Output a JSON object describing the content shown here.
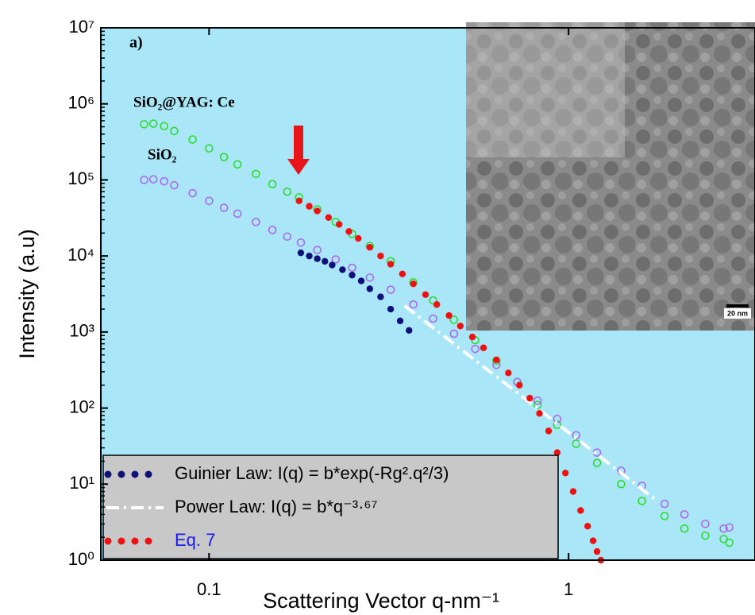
{
  "chart_data": {
    "type": "scatter",
    "x_label": "Scattering Vector q-nm⁻¹",
    "y_label": "Intensity (a.u)",
    "log_x": true,
    "log_y": true,
    "xlim": [
      0.05,
      3.3
    ],
    "ylim": [
      1,
      10000000
    ],
    "xticks": [
      0.1,
      1
    ],
    "yticks": [
      {
        "value": 1,
        "label": "10⁰"
      },
      {
        "value": 10,
        "label": "10¹"
      },
      {
        "value": 100,
        "label": "10²"
      },
      {
        "value": 1000,
        "label": "10³"
      },
      {
        "value": 10000,
        "label": "10⁴"
      },
      {
        "value": 100000,
        "label": "10⁵"
      },
      {
        "value": 1000000,
        "label": "10⁶"
      },
      {
        "value": 10000000,
        "label": "10⁷"
      }
    ],
    "annotations": [
      "a)",
      "SiO₂@YAG: Ce",
      "SiO₂",
      "20 nm"
    ],
    "series": [
      {
        "color": "#22dd22",
        "marker": "open",
        "x": [
          0.066,
          0.07,
          0.075,
          0.08,
          0.09,
          0.1,
          0.11,
          0.12,
          0.135,
          0.15,
          0.165,
          0.178,
          0.2,
          0.225,
          0.25,
          0.28,
          0.32,
          0.37,
          0.42,
          0.48,
          0.55,
          0.63,
          0.72,
          0.82,
          0.93,
          1.05,
          1.2,
          1.4,
          1.6,
          1.85,
          2.1,
          2.4,
          2.7,
          2.8
        ],
        "values": [
          540000,
          550000,
          510000,
          440000,
          340000,
          260000,
          200000,
          160000,
          120000,
          88000,
          70000,
          59000,
          41000,
          28000,
          19500,
          13500,
          8500,
          4500,
          2600,
          1450,
          780,
          420,
          220,
          110,
          60,
          34,
          19,
          10,
          6,
          3.8,
          2.6,
          2.1,
          1.9,
          1.7
        ]
      },
      {
        "color": "#b060f0",
        "marker": "open",
        "x": [
          0.066,
          0.07,
          0.075,
          0.08,
          0.09,
          0.1,
          0.11,
          0.12,
          0.135,
          0.15,
          0.165,
          0.18,
          0.2,
          0.225,
          0.25,
          0.28,
          0.32,
          0.37,
          0.42,
          0.48,
          0.55,
          0.63,
          0.72,
          0.82,
          0.93,
          1.05,
          1.2,
          1.4,
          1.6,
          1.85,
          2.1,
          2.4,
          2.7,
          2.8
        ],
        "values": [
          100000,
          102000,
          96000,
          85000,
          67000,
          53000,
          43000,
          36000,
          28000,
          22000,
          18000,
          15000,
          12000,
          9000,
          7000,
          5200,
          3600,
          2300,
          1500,
          950,
          600,
          370,
          220,
          125,
          72,
          44,
          26,
          15,
          9.5,
          5.5,
          4,
          3,
          2.6,
          2.7
        ]
      },
      {
        "name": "Guinier Law: I(q) = b*exp(-Rg².q²/3)",
        "color": "#10107a",
        "marker": "dot",
        "x": [
          0.18,
          0.19,
          0.2,
          0.21,
          0.22,
          0.235,
          0.25,
          0.265,
          0.28,
          0.3,
          0.32,
          0.34,
          0.36
        ],
        "values": [
          11000,
          10000,
          9200,
          8500,
          7600,
          6600,
          5600,
          4700,
          3700,
          2900,
          2000,
          1400,
          1050
        ]
      },
      {
        "name": "Power Law: I(q) = b*q⁻³·⁶⁷",
        "color": "#ffffff",
        "marker": "dashdot",
        "x": [
          0.35,
          1.75
        ],
        "values": [
          2214,
          6.2
        ]
      },
      {
        "name": "Eq. 7",
        "color": "#ee1111",
        "marker": "dot",
        "legend_text_color": "#1a1aee",
        "x": [
          0.178,
          0.19,
          0.2,
          0.215,
          0.23,
          0.245,
          0.26,
          0.28,
          0.3,
          0.32,
          0.345,
          0.37,
          0.4,
          0.43,
          0.465,
          0.5,
          0.54,
          0.58,
          0.63,
          0.68,
          0.73,
          0.78,
          0.83,
          0.88,
          0.93,
          0.98,
          1.03,
          1.08,
          1.13,
          1.17,
          1.2,
          1.23
        ],
        "values": [
          53000,
          45000,
          39000,
          32000,
          26000,
          21000,
          17000,
          13000,
          10000,
          7800,
          5800,
          4300,
          3100,
          2300,
          1650,
          1200,
          860,
          620,
          430,
          290,
          200,
          135,
          85,
          50,
          26,
          14,
          8,
          4.5,
          2.8,
          1.8,
          1.3,
          1
        ]
      }
    ]
  }
}
